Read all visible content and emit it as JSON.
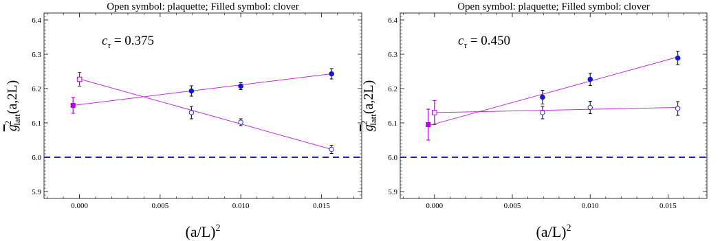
{
  "chart_data": [
    {
      "type": "scatter",
      "title": "Open symbol: plaquette;   Filled symbol: clover",
      "annotation": {
        "symbol": "c",
        "subscript": "τ",
        "value": " = 0.375"
      },
      "xlabel": {
        "base": "(a/L)",
        "sup": "2"
      },
      "ylabel": {
        "g": "g",
        "sup": "2",
        "sub": "latt",
        "args": "(a,2L)"
      },
      "xlim": [
        -0.0022,
        0.0175
      ],
      "ylim": [
        5.88,
        6.42
      ],
      "xticks": [
        0.0,
        0.005,
        0.01,
        0.015
      ],
      "xtick_labels": [
        "0.000",
        "0.005",
        "0.010",
        "0.015"
      ],
      "yticks": [
        5.9,
        6.0,
        6.1,
        6.2,
        6.3,
        6.4
      ],
      "ytick_labels": [
        "5.9",
        "6.0",
        "6.1",
        "6.2",
        "6.3",
        "6.4"
      ],
      "reference_line": {
        "y": 6.0,
        "style": "dashed",
        "color": "#1f1fd8"
      },
      "series": [
        {
          "symbol": "filled-circle",
          "color": "#1515d6",
          "points": [
            {
              "x": 0.00694,
              "y": 6.193,
              "err": 0.015
            },
            {
              "x": 0.01,
              "y": 6.207,
              "err": 0.01
            },
            {
              "x": 0.01563,
              "y": 6.243,
              "err": 0.015
            }
          ],
          "fit": {
            "x": [
              -0.0004,
              0.01563
            ],
            "y": [
              6.151,
              6.243
            ],
            "color": "#c02cd6"
          },
          "extrapolation": {
            "x": -0.0004,
            "y": 6.151,
            "err": 0.023,
            "symbol": "filled-square",
            "color": "#b100e0"
          }
        },
        {
          "symbol": "open-circle",
          "color": "#1515d6",
          "points": [
            {
              "x": 0.00694,
              "y": 6.13,
              "err": 0.018
            },
            {
              "x": 0.01,
              "y": 6.102,
              "err": 0.01
            },
            {
              "x": 0.01563,
              "y": 6.023,
              "err": 0.012
            }
          ],
          "fit": {
            "x": [
              0.0,
              0.01563
            ],
            "y": [
              6.228,
              6.023
            ],
            "color": "#c02cd6"
          },
          "extrapolation": {
            "x": 0.0,
            "y": 6.227,
            "err": 0.02,
            "symbol": "open-square",
            "color": "#b100e0"
          }
        }
      ]
    },
    {
      "type": "scatter",
      "title": "Open symbol: plaquette;   Filled symbol: clover",
      "annotation": {
        "symbol": "c",
        "subscript": "τ",
        "value": " = 0.450"
      },
      "xlabel": {
        "base": "(a/L)",
        "sup": "2"
      },
      "ylabel": {
        "g": "g",
        "sup": "2",
        "sub": "latt",
        "args": "(a,2L)"
      },
      "xlim": [
        -0.0022,
        0.0175
      ],
      "ylim": [
        5.88,
        6.42
      ],
      "xticks": [
        0.0,
        0.005,
        0.01,
        0.015
      ],
      "xtick_labels": [
        "0.000",
        "0.005",
        "0.010",
        "0.015"
      ],
      "yticks": [
        5.9,
        6.0,
        6.1,
        6.2,
        6.3,
        6.4
      ],
      "ytick_labels": [
        "5.9",
        "6.0",
        "6.1",
        "6.2",
        "6.3",
        "6.4"
      ],
      "reference_line": {
        "y": 6.0,
        "style": "dashed",
        "color": "#1f1fd8"
      },
      "series": [
        {
          "symbol": "filled-circle",
          "color": "#1515d6",
          "points": [
            {
              "x": 0.00694,
              "y": 6.175,
              "err": 0.02
            },
            {
              "x": 0.01,
              "y": 6.227,
              "err": 0.018
            },
            {
              "x": 0.01563,
              "y": 6.289,
              "err": 0.02
            }
          ],
          "fit": {
            "x": [
              -0.0004,
              0.01563
            ],
            "y": [
              6.092,
              6.292
            ],
            "color": "#c02cd6"
          },
          "extrapolation": {
            "x": -0.0004,
            "y": 6.095,
            "err": 0.045,
            "symbol": "filled-square",
            "color": "#b100e0"
          }
        },
        {
          "symbol": "open-circle",
          "color": "#1515d6",
          "points": [
            {
              "x": 0.00694,
              "y": 6.13,
              "err": 0.018
            },
            {
              "x": 0.01,
              "y": 6.145,
              "err": 0.018
            },
            {
              "x": 0.01563,
              "y": 6.142,
              "err": 0.02
            }
          ],
          "fit": {
            "x": [
              0.0,
              0.01563
            ],
            "y": [
              6.13,
              6.145
            ],
            "color": "#c02cd6"
          },
          "extrapolation": {
            "x": 0.0,
            "y": 6.13,
            "err": 0.035,
            "symbol": "open-square",
            "color": "#b100e0"
          }
        }
      ]
    }
  ]
}
